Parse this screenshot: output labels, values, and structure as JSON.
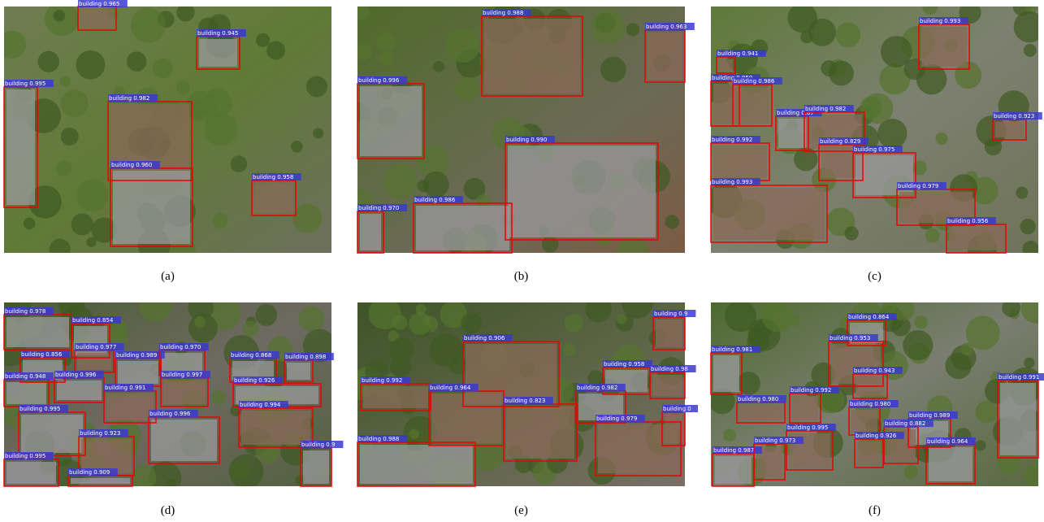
{
  "panels": [
    {
      "caption": "(a)",
      "detections": [
        "building 0.965",
        "building 0.945",
        "building 0.995",
        "building 0.982",
        "building 0.960",
        "building 0.958"
      ]
    },
    {
      "caption": "(b)",
      "detections": [
        "building 0.988",
        "building 0.963",
        "building 0.996",
        "building 0.990",
        "building 0.986",
        "building 0.970"
      ]
    },
    {
      "caption": "(c)",
      "detections": [
        "building 0.993",
        "building 0.941",
        "building 0.959",
        "building 0.986",
        "building 0.87",
        "building 0.982",
        "building 0.923",
        "building 0.992",
        "building 0.829",
        "building 0.975",
        "building 0.993",
        "building 0.979",
        "building 0.956"
      ]
    },
    {
      "caption": "(d)",
      "detections": [
        "building 0.978",
        "building 0.854",
        "building 0.856",
        "building 0.977",
        "building 0.989",
        "building 0.970",
        "building 0.868",
        "building 0.898",
        "building 0.948",
        "building 0.996",
        "building 0.997",
        "building 0.926",
        "building 0.991",
        "building 0.995",
        "building 0.994",
        "building 0.996",
        "building 0.923",
        "building 0.995",
        "building 0.909",
        "building 0.9"
      ]
    },
    {
      "caption": "(e)",
      "detections": [
        "building 0.906",
        "building 0.9",
        "building 0.958",
        "building 0.98",
        "building 0.992",
        "building 0.964",
        "building 0.982",
        "building 0.823",
        "building 0",
        "building 0.979",
        "building 0.988"
      ]
    },
    {
      "caption": "(f)",
      "detections": [
        "building 0.864",
        "building 0.981",
        "building 0.953",
        "building 0.943",
        "building 0.991",
        "building 0.992",
        "building 0.980",
        "building 0.980",
        "building 0.989",
        "building 0.882",
        "building 0.995",
        "building 0.926",
        "building 0.964",
        "building 0.987",
        "building 0.973"
      ]
    }
  ]
}
